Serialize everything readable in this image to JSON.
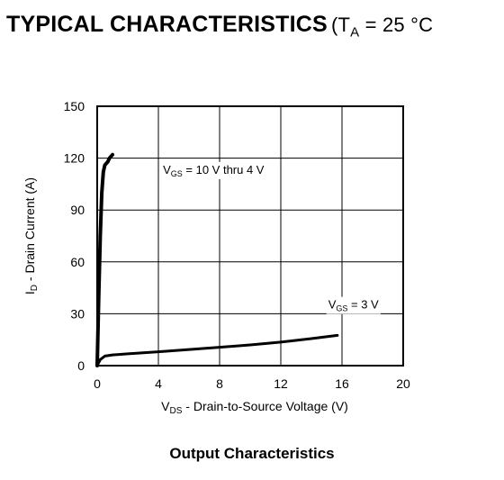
{
  "header": {
    "title": "TYPICAL CHARACTERISTICS",
    "condition_open": "(T",
    "condition_sub": "A",
    "condition_rest": " = 25 °C"
  },
  "caption": "Output Characteristics",
  "chart_data": {
    "type": "line",
    "title": "Output Characteristics",
    "xlabel": "V_DS - Drain-to-Source Voltage (V)",
    "ylabel": "I_D - Drain Current (A)",
    "xlabel_parts": {
      "main": "V",
      "sub": "DS",
      "rest": " - Drain-to-Source Voltage (V)"
    },
    "ylabel_parts": {
      "main": "I",
      "sub": "D",
      "rest": " - Drain Current (A)"
    },
    "xlim": [
      0,
      20
    ],
    "ylim": [
      0,
      150
    ],
    "xticks": [
      0,
      4,
      8,
      12,
      16,
      20
    ],
    "yticks": [
      0,
      30,
      60,
      90,
      120,
      150
    ],
    "grid": true,
    "series": [
      {
        "name": "V_GS = 10 V thru 4 V",
        "label_parts": {
          "main": "V",
          "sub": "GS",
          "rest": " = 10 V thru 4 V"
        },
        "label_at": [
          4.3,
          111
        ],
        "x": [
          0,
          0.1,
          0.2,
          0.3,
          0.4,
          0.5,
          0.6,
          0.7,
          0.8,
          1.0
        ],
        "y": [
          0,
          40,
          75,
          100,
          112,
          116,
          117,
          118,
          120,
          122
        ]
      },
      {
        "name": "V_GS = 3 V",
        "label_parts": {
          "main": "V",
          "sub": "GS",
          "rest": " = 3 V"
        },
        "label_at": [
          15.1,
          33
        ],
        "x": [
          0,
          0.2,
          0.5,
          1,
          2,
          4,
          6,
          8,
          10,
          12,
          14,
          15.7
        ],
        "y": [
          0,
          3.5,
          5.5,
          6.2,
          6.8,
          8.0,
          9.3,
          10.6,
          12.0,
          13.6,
          15.6,
          17.5
        ]
      }
    ]
  }
}
